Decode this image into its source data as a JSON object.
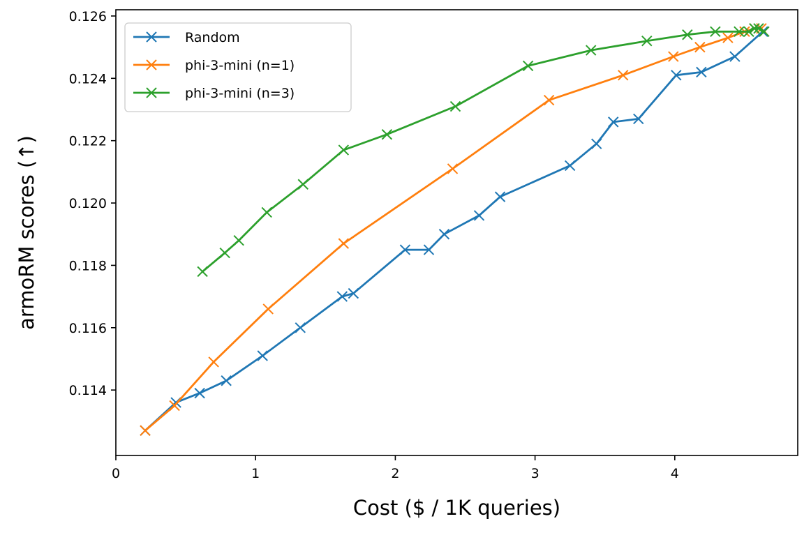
{
  "chart_data": {
    "type": "line",
    "title": "",
    "xlabel": "Cost ($ / 1K queries)",
    "ylabel": "armoRM scores (↑)",
    "xlim": [
      0,
      4.88
    ],
    "ylim": [
      0.1119,
      0.1262
    ],
    "xticks": [
      0,
      1,
      2,
      3,
      4
    ],
    "xtick_labels": [
      "0",
      "1",
      "2",
      "3",
      "4"
    ],
    "yticks": [
      0.114,
      0.116,
      0.118,
      0.12,
      0.122,
      0.124,
      0.126
    ],
    "ytick_labels": [
      "0.114",
      "0.116",
      "0.118",
      "0.120",
      "0.122",
      "0.124",
      "0.126"
    ],
    "grid": false,
    "legend_position": "top-left",
    "marker": "x",
    "series": [
      {
        "name": "Random",
        "color": "#1f77b4",
        "x": [
          0.21,
          0.43,
          0.6,
          0.79,
          1.05,
          1.32,
          1.62,
          1.7,
          2.07,
          2.24,
          2.35,
          2.6,
          2.75,
          3.25,
          3.44,
          3.56,
          3.74,
          4.01,
          4.19,
          4.43,
          4.63
        ],
        "y": [
          0.1127,
          0.1136,
          0.1139,
          0.1143,
          0.1151,
          0.116,
          0.117,
          0.1171,
          0.1185,
          0.1185,
          0.119,
          0.1196,
          0.1202,
          0.1212,
          0.1219,
          0.1226,
          0.1227,
          0.1241,
          0.1242,
          0.1247,
          0.1255
        ]
      },
      {
        "name": "phi-3-mini (n=1)",
        "color": "#ff7f0e",
        "x": [
          0.21,
          0.42,
          0.7,
          1.09,
          1.63,
          2.41,
          3.1,
          3.63,
          3.99,
          4.18,
          4.38,
          4.5,
          4.57,
          4.62
        ],
        "y": [
          0.1127,
          0.1135,
          0.1149,
          0.1166,
          0.1187,
          0.1211,
          0.1233,
          0.1241,
          0.1247,
          0.125,
          0.1253,
          0.1255,
          0.1256,
          0.1256
        ]
      },
      {
        "name": "phi-3-mini (n=3)",
        "color": "#2ca02c",
        "x": [
          0.62,
          0.78,
          0.88,
          1.08,
          1.34,
          1.63,
          1.94,
          2.43,
          2.95,
          3.4,
          3.8,
          4.09,
          4.29,
          4.46,
          4.53,
          4.57,
          4.6,
          4.64
        ],
        "y": [
          0.1178,
          0.1184,
          0.1188,
          0.1197,
          0.1206,
          0.1217,
          0.1222,
          0.1231,
          0.1244,
          0.1249,
          0.1252,
          0.1254,
          0.1255,
          0.1255,
          0.1255,
          0.1256,
          0.1256,
          0.1255
        ]
      }
    ]
  }
}
